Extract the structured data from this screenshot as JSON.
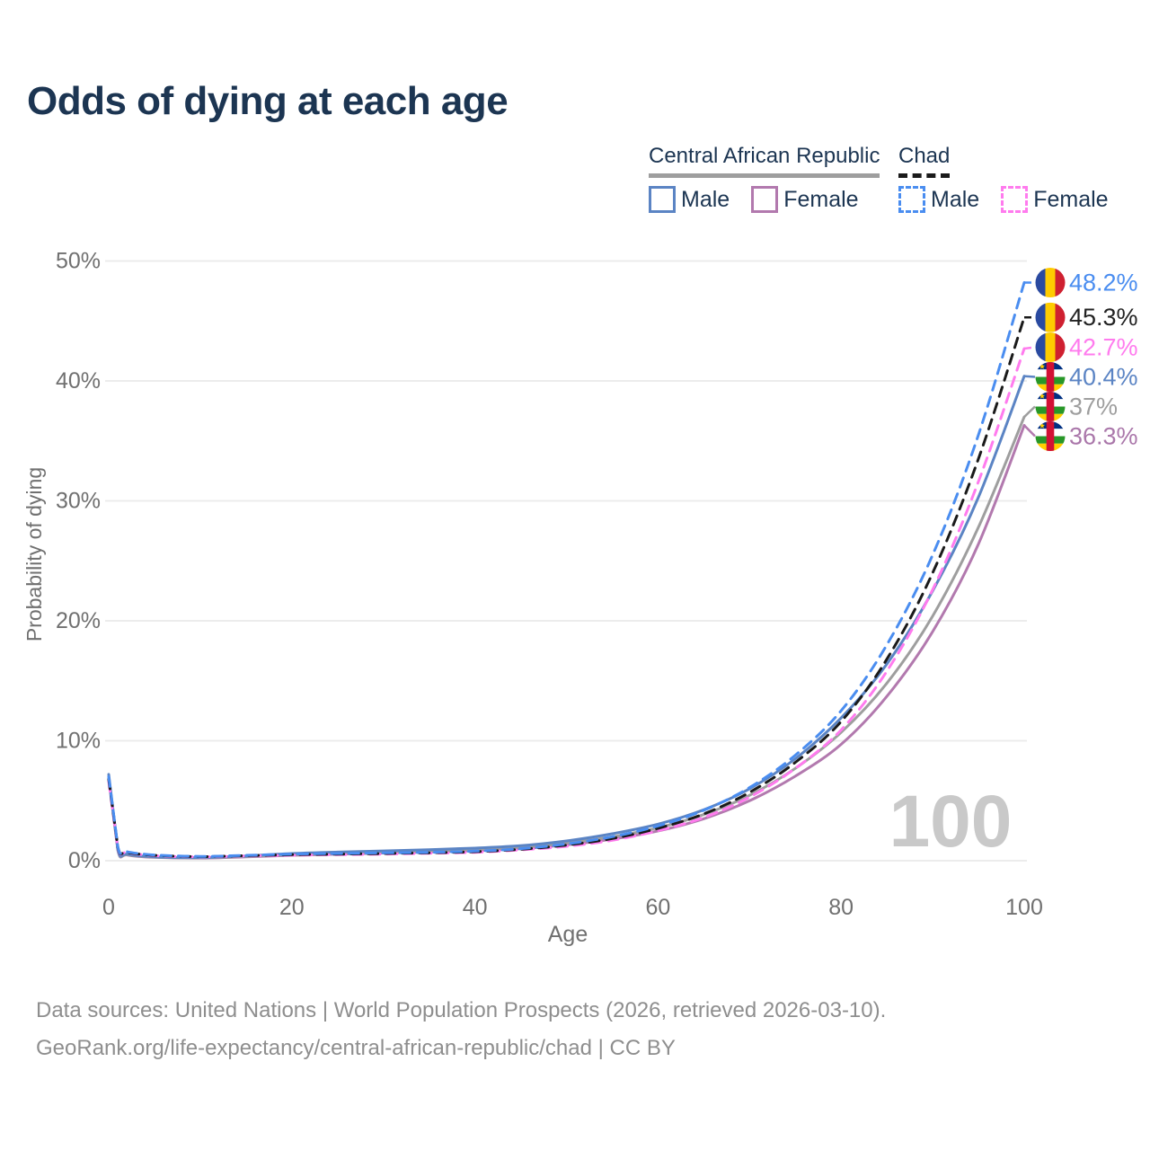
{
  "title": "Odds of dying at each age",
  "watermark": "100",
  "legend": {
    "groups": [
      {
        "label": "Central African Republic",
        "line_style": "solid",
        "line_color": "#9e9e9e",
        "items": [
          {
            "label": "Male",
            "color": "#5b84c4",
            "style": "solid"
          },
          {
            "label": "Female",
            "color": "#b279ae",
            "style": "solid"
          }
        ]
      },
      {
        "label": "Chad",
        "line_style": "dashed",
        "line_color": "#1a1a1a",
        "items": [
          {
            "label": "Male",
            "color": "#4a8df0",
            "style": "dashed"
          },
          {
            "label": "Female",
            "color": "#ff7bee",
            "style": "dashed"
          }
        ]
      }
    ]
  },
  "footer": {
    "line1": "Data sources: United Nations | World Population Prospects (2026, retrieved 2026-03-10).",
    "line2": "GeoRank.org/life-expectancy/central-african-republic/chad | CC BY"
  },
  "chart_data": {
    "type": "line",
    "title": "Odds of dying at each age",
    "xlabel": "Age",
    "ylabel": "Probability of dying",
    "xlim": [
      0,
      100
    ],
    "ylim": [
      0,
      50
    ],
    "grid": "horizontal",
    "x_ticks": [
      {
        "label": "0",
        "value": 0
      },
      {
        "label": "20",
        "value": 20
      },
      {
        "label": "40",
        "value": 40
      },
      {
        "label": "60",
        "value": 60
      },
      {
        "label": "80",
        "value": 80
      },
      {
        "label": "100",
        "value": 100
      }
    ],
    "y_ticks": [
      {
        "label": "0%",
        "value": 0
      },
      {
        "label": "10%",
        "value": 10
      },
      {
        "label": "20%",
        "value": 20
      },
      {
        "label": "30%",
        "value": 30
      },
      {
        "label": "40%",
        "value": 40
      },
      {
        "label": "50%",
        "value": 50
      }
    ],
    "ages": [
      0,
      1,
      2,
      5,
      10,
      15,
      20,
      25,
      30,
      35,
      40,
      45,
      50,
      55,
      60,
      65,
      70,
      75,
      80,
      85,
      90,
      95,
      100
    ],
    "series": [
      {
        "id": "chad-male",
        "name": "Chad Male",
        "country": "Chad",
        "sex": "Male",
        "color": "#4a8df0",
        "dashed": true,
        "flag": "flag-chad",
        "end_label": "48.2%",
        "end_value": 48.2,
        "label_color": "#4a8df0",
        "values": [
          7.0,
          1.15,
          0.75,
          0.48,
          0.36,
          0.45,
          0.55,
          0.6,
          0.65,
          0.7,
          0.8,
          1.0,
          1.4,
          2.0,
          2.9,
          4.2,
          6.1,
          8.8,
          12.5,
          18.0,
          25.5,
          35.5,
          48.2
        ]
      },
      {
        "id": "chad-both",
        "name": "Chad Both sexes",
        "country": "Chad",
        "sex": "Both",
        "color": "#1a1a1a",
        "dashed": true,
        "flag": "flag-chad",
        "end_label": "45.3%",
        "end_value": 45.3,
        "label_color": "#222222",
        "values": [
          6.8,
          1.1,
          0.7,
          0.45,
          0.34,
          0.42,
          0.5,
          0.55,
          0.6,
          0.66,
          0.75,
          0.95,
          1.3,
          1.85,
          2.7,
          3.9,
          5.7,
          8.2,
          11.6,
          16.8,
          24.0,
          33.5,
          45.3
        ]
      },
      {
        "id": "chad-female",
        "name": "Chad Female",
        "country": "Chad",
        "sex": "Female",
        "color": "#ff7bee",
        "dashed": true,
        "flag": "flag-chad",
        "end_label": "42.7%",
        "end_value": 42.7,
        "label_color": "#ff7bee",
        "values": [
          6.6,
          1.05,
          0.68,
          0.42,
          0.32,
          0.4,
          0.46,
          0.5,
          0.55,
          0.62,
          0.7,
          0.9,
          1.2,
          1.7,
          2.5,
          3.6,
          5.3,
          7.7,
          10.9,
          15.8,
          22.6,
          31.6,
          42.7
        ]
      },
      {
        "id": "car-male",
        "name": "Central African Republic Male",
        "country": "Central African Republic",
        "sex": "Male",
        "color": "#5b84c4",
        "dashed": false,
        "flag": "flag-car",
        "end_label": "40.4%",
        "end_value": 40.4,
        "label_color": "#5b84c4",
        "values": [
          7.2,
          0.95,
          0.55,
          0.32,
          0.26,
          0.4,
          0.6,
          0.72,
          0.82,
          0.92,
          1.05,
          1.25,
          1.65,
          2.25,
          3.05,
          4.25,
          6.0,
          8.5,
          11.9,
          16.4,
          22.5,
          30.3,
          40.4
        ]
      },
      {
        "id": "car-both",
        "name": "Central African Republic Both sexes",
        "country": "Central African Republic",
        "sex": "Both",
        "color": "#9e9e9e",
        "dashed": false,
        "flag": "flag-car",
        "end_label": "37%",
        "end_value": 37.0,
        "label_color": "#9e9e9e",
        "values": [
          7.0,
          0.9,
          0.5,
          0.3,
          0.24,
          0.36,
          0.52,
          0.63,
          0.72,
          0.82,
          0.95,
          1.12,
          1.48,
          2.0,
          2.75,
          3.85,
          5.45,
          7.7,
          10.7,
          14.8,
          20.4,
          27.8,
          37.0
        ]
      },
      {
        "id": "car-female",
        "name": "Central African Republic Female",
        "country": "Central African Republic",
        "sex": "Female",
        "color": "#b279ae",
        "dashed": false,
        "flag": "flag-car",
        "end_label": "36.3%",
        "end_value": 36.3,
        "label_color": "#aa77aa",
        "values": [
          6.8,
          0.85,
          0.48,
          0.28,
          0.22,
          0.32,
          0.45,
          0.55,
          0.64,
          0.73,
          0.85,
          1.0,
          1.32,
          1.8,
          2.48,
          3.5,
          5.0,
          7.05,
          9.7,
          13.7,
          19.1,
          26.4,
          36.3
        ]
      }
    ],
    "flag_colors": {
      "chad": {
        "blue": "#2a4aa0",
        "yellow": "#fecb00",
        "red": "#cf2030"
      },
      "car": {
        "blue": "#003082",
        "white": "#ffffff",
        "green": "#289728",
        "yellow": "#ffce00",
        "red": "#d21034"
      }
    }
  }
}
